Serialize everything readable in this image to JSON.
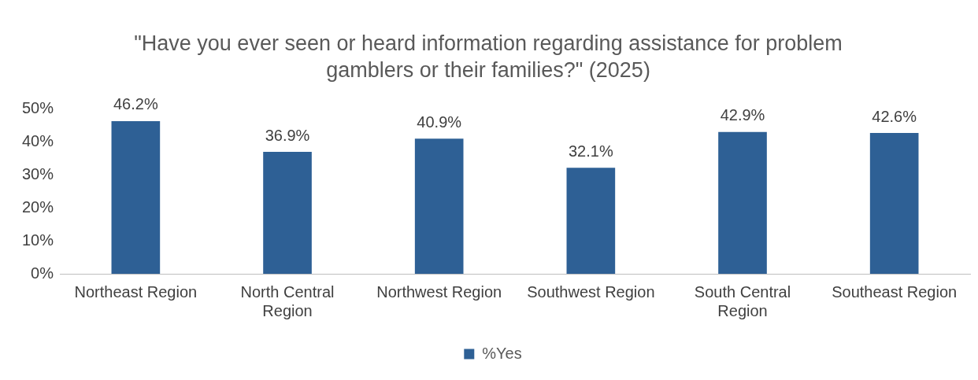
{
  "chart_data": {
    "type": "bar",
    "title": "\"Have you ever seen or heard information regarding assistance for problem gamblers or their families?\" (2025)",
    "categories": [
      "Northeast Region",
      "North Central Region",
      "Northwest Region",
      "Southwest Region",
      "South Central Region",
      "Southeast Region"
    ],
    "series": [
      {
        "name": "%Yes",
        "color": "#2e6095",
        "values": [
          46.2,
          36.9,
          40.9,
          32.1,
          42.9,
          42.6
        ],
        "value_labels": [
          "46.2%",
          "36.9%",
          "40.9%",
          "32.1%",
          "42.9%",
          "42.6%"
        ]
      }
    ],
    "ylim": [
      0,
      50
    ],
    "yticks": [
      {
        "value": 0,
        "label": "0%"
      },
      {
        "value": 10,
        "label": "10%"
      },
      {
        "value": 20,
        "label": "20%"
      },
      {
        "value": 30,
        "label": "30%"
      },
      {
        "value": 40,
        "label": "40%"
      },
      {
        "value": 50,
        "label": "50%"
      }
    ],
    "grid": false,
    "legend": "bottom"
  }
}
